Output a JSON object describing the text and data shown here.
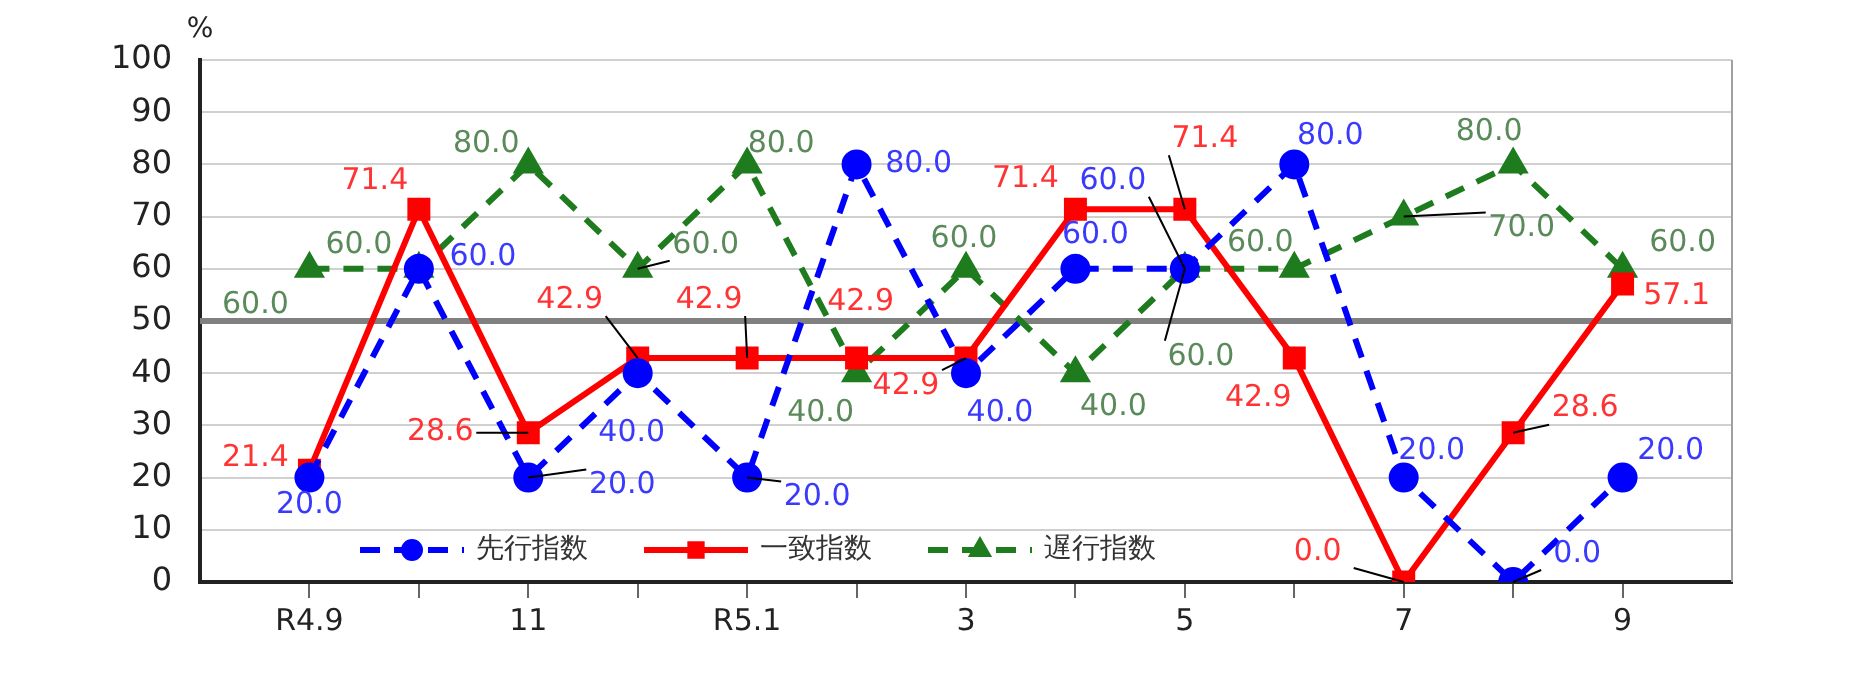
{
  "chart_data": {
    "type": "line",
    "ylabel": "%",
    "categories": [
      "R4.9",
      null,
      "11",
      null,
      "R5.1",
      null,
      "3",
      null,
      "5",
      null,
      "7",
      null,
      "9"
    ],
    "ylim": [
      0,
      100
    ],
    "yticks": [
      0,
      10,
      20,
      30,
      40,
      50,
      60,
      70,
      80,
      90,
      100
    ],
    "grid": "y",
    "legend": "bottom left",
    "ref_lines": [
      {
        "axis": "y",
        "value": 50,
        "color": "#808080"
      }
    ],
    "series": [
      {
        "name": "先行指数",
        "color": "#0000ff",
        "marker": "circle",
        "line_style": "dashed",
        "values": [
          20,
          60,
          20,
          40,
          20,
          80,
          40,
          60,
          60,
          80,
          20,
          0,
          20
        ],
        "value_labels": [
          "20.0",
          "60.0",
          "20.0",
          "40.0",
          "20.0",
          "80.0",
          "40.0",
          "60.0",
          "60.0",
          "80.0",
          "20.0",
          "0.0",
          "20.0"
        ]
      },
      {
        "name": "一致指数",
        "color": "#ff0000",
        "marker": "square",
        "line_style": "solid",
        "values": [
          21.4,
          71.4,
          28.6,
          42.9,
          42.9,
          42.9,
          42.9,
          71.4,
          71.4,
          42.9,
          0.0,
          28.6,
          57.1
        ],
        "value_labels": [
          "21.4",
          "71.4",
          "28.6",
          "42.9",
          "42.9",
          "42.9",
          "42.9",
          "71.4",
          "71.4",
          "42.9",
          "0.0",
          "28.6",
          "57.1"
        ]
      },
      {
        "name": "遅行指数",
        "color": "#1e7b1e",
        "marker": "triangle",
        "line_style": "dashed",
        "values": [
          60,
          60,
          80,
          60,
          80,
          40,
          60,
          40,
          60,
          60,
          70,
          80,
          60
        ],
        "value_labels": [
          "60.0",
          "60.0",
          "80.0",
          "60.0",
          "80.0",
          "40.0",
          "60.0",
          "40.0",
          "60.0",
          "60.0",
          "70.0",
          "80.0",
          "60.0"
        ]
      }
    ]
  }
}
